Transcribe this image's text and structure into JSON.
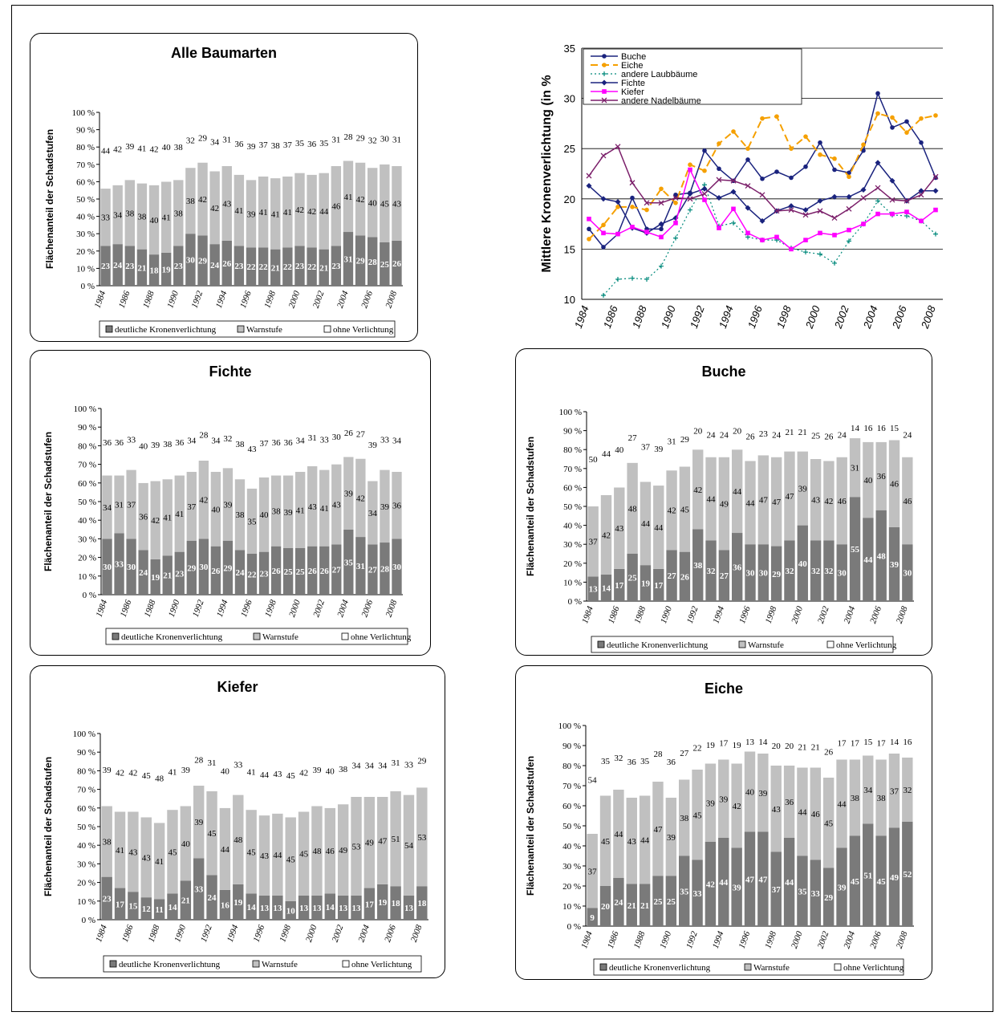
{
  "years": [
    1984,
    1985,
    1986,
    1987,
    1988,
    1989,
    1990,
    1991,
    1992,
    1993,
    1994,
    1995,
    1996,
    1997,
    1998,
    1999,
    2000,
    2001,
    2002,
    2003,
    2004,
    2005,
    2006,
    2007,
    2008
  ],
  "x_tick_labels": [
    "1984",
    "1986",
    "1988",
    "1990",
    "1992",
    "1994",
    "1996",
    "1998",
    "2000",
    "2002",
    "2004",
    "2006",
    "2008"
  ],
  "y_tick_labels": [
    "0 %",
    "10 %",
    "20 %",
    "30 %",
    "40 %",
    "50 %",
    "60 %",
    "70 %",
    "80 %",
    "90 %",
    "100 %"
  ],
  "ylabel": "Flächenanteil der Schadstufen",
  "legend": [
    "deutliche Kronenverlichtung",
    "Warnstufe",
    "ohne Verlichtung"
  ],
  "colors": {
    "deutlich": "#7a7a7a",
    "warn": "#c0c0c0",
    "ohne": "#ffffff",
    "buche": "#1a237e",
    "eiche": "#f5a000",
    "laub": "#00897b",
    "fichte": "#1a237e",
    "kiefer": "#ff00ff",
    "nadel": "#7b1f6a"
  },
  "chart_data": [
    {
      "type": "bar",
      "stacked": true,
      "title": "Alle Baumarten",
      "categories": [
        1984,
        1985,
        1986,
        1987,
        1988,
        1989,
        1990,
        1991,
        1992,
        1993,
        1994,
        1995,
        1996,
        1997,
        1998,
        1999,
        2000,
        2001,
        2002,
        2003,
        2004,
        2005,
        2006,
        2007,
        2008
      ],
      "series": [
        {
          "name": "deutliche Kronenverlichtung",
          "values": [
            23,
            24,
            23,
            21,
            18,
            19,
            23,
            30,
            29,
            24,
            26,
            23,
            22,
            22,
            21,
            22,
            23,
            22,
            21,
            23,
            31,
            29,
            28,
            25,
            26
          ]
        },
        {
          "name": "Warnstufe",
          "values": [
            33,
            34,
            38,
            38,
            40,
            41,
            38,
            38,
            42,
            42,
            43,
            41,
            39,
            41,
            41,
            41,
            42,
            42,
            44,
            46,
            41,
            42,
            40,
            45,
            43
          ]
        },
        {
          "name": "ohne Verlichtung",
          "values": [
            44,
            42,
            39,
            41,
            42,
            40,
            38,
            32,
            29,
            34,
            31,
            36,
            39,
            37,
            38,
            37,
            35,
            36,
            35,
            31,
            28,
            29,
            32,
            30,
            31
          ]
        }
      ],
      "ylim": [
        0,
        100
      ]
    },
    {
      "type": "line",
      "title": "",
      "ylabel": "Mittlere Kronenverlichtung (in %",
      "x": [
        1984,
        1985,
        1986,
        1987,
        1988,
        1989,
        1990,
        1991,
        1992,
        1993,
        1994,
        1995,
        1996,
        1997,
        1998,
        1999,
        2000,
        2001,
        2002,
        2003,
        2004,
        2005,
        2006,
        2007,
        2008
      ],
      "ylim": [
        10,
        35
      ],
      "yticks": [
        "10",
        "15",
        "20",
        "25",
        "30",
        "35"
      ],
      "series": [
        {
          "name": "Buche",
          "values": [
            17,
            15.2,
            16.5,
            20.1,
            17,
            17,
            20.4,
            20.6,
            24.8,
            23,
            21.8,
            23.9,
            22,
            22.7,
            22.1,
            23.2,
            25.6,
            22.9,
            22.6,
            24.8,
            30.5,
            27.1,
            27.7,
            25.6,
            22.1
          ]
        },
        {
          "name": "Eiche",
          "values": [
            16,
            17.4,
            19.2,
            19.2,
            18.9,
            21,
            19.6,
            23.4,
            22.8,
            25.5,
            26.7,
            25,
            28,
            28.2,
            25,
            26.2,
            24.4,
            24,
            22.2,
            25.4,
            28.5,
            28.1,
            26.6,
            28,
            28.3
          ]
        },
        {
          "name": "andere Laubbäume",
          "values": [
            null,
            10.4,
            12,
            12.1,
            12,
            13.3,
            16.1,
            18.9,
            21.4,
            17.3,
            17.6,
            16.2,
            15.9,
            15.9,
            15.1,
            14.7,
            14.5,
            13.6,
            15.8,
            17.5,
            19.8,
            18.4,
            18.3,
            17.8,
            16.5
          ]
        },
        {
          "name": "Fichte",
          "values": [
            21.3,
            20,
            19.7,
            17.1,
            16.6,
            17.5,
            18.1,
            20.5,
            21,
            20.1,
            20.7,
            19.1,
            17.8,
            18.8,
            19.3,
            18.9,
            19.8,
            20.2,
            20.2,
            20.9,
            23.6,
            21.8,
            19.8,
            20.8,
            20.8
          ]
        },
        {
          "name": "Kiefer",
          "values": [
            18,
            16.6,
            16.5,
            17.2,
            16.7,
            16.2,
            17.6,
            22.9,
            19.9,
            17.1,
            19,
            16.6,
            15.9,
            16.2,
            15,
            15.9,
            16.6,
            16.4,
            16.9,
            17.5,
            18.5,
            18.5,
            18.7,
            17.8,
            18.9
          ]
        },
        {
          "name": "andere Nadelbäume",
          "values": [
            22.3,
            24.3,
            25.2,
            21.6,
            19.6,
            19.6,
            20.1,
            20,
            20.5,
            21.9,
            21.8,
            21.3,
            20.4,
            18.8,
            18.9,
            18.4,
            18.8,
            18.1,
            19,
            20.1,
            21.1,
            19.9,
            19.8,
            20.4,
            22.2
          ]
        }
      ]
    },
    {
      "type": "bar",
      "stacked": true,
      "title": "Fichte",
      "categories": [
        1984,
        1985,
        1986,
        1987,
        1988,
        1989,
        1990,
        1991,
        1992,
        1993,
        1994,
        1995,
        1996,
        1997,
        1998,
        1999,
        2000,
        2001,
        2002,
        2003,
        2004,
        2005,
        2006,
        2007,
        2008
      ],
      "series": [
        {
          "name": "deutliche Kronenverlichtung",
          "values": [
            30,
            33,
            30,
            24,
            19,
            21,
            23,
            29,
            30,
            26,
            29,
            24,
            22,
            23,
            26,
            25,
            25,
            26,
            26,
            27,
            35,
            31,
            27,
            28,
            30
          ]
        },
        {
          "name": "Warnstufe",
          "values": [
            34,
            31,
            37,
            36,
            42,
            41,
            41,
            37,
            42,
            40,
            39,
            38,
            35,
            40,
            38,
            39,
            41,
            43,
            41,
            43,
            39,
            42,
            34,
            39,
            36
          ]
        },
        {
          "name": "ohne Verlichtung",
          "values": [
            36,
            36,
            33,
            40,
            39,
            38,
            36,
            34,
            28,
            34,
            32,
            38,
            43,
            37,
            36,
            36,
            34,
            31,
            33,
            30,
            26,
            27,
            39,
            33,
            34
          ]
        }
      ],
      "ylim": [
        0,
        100
      ]
    },
    {
      "type": "bar",
      "stacked": true,
      "title": "Buche",
      "categories": [
        1984,
        1985,
        1986,
        1987,
        1988,
        1989,
        1990,
        1991,
        1992,
        1993,
        1994,
        1995,
        1996,
        1997,
        1998,
        1999,
        2000,
        2001,
        2002,
        2003,
        2004,
        2005,
        2006,
        2007,
        2008
      ],
      "series": [
        {
          "name": "deutliche Kronenverlichtung",
          "values": [
            13,
            14,
            17,
            25,
            19,
            17,
            27,
            26,
            38,
            32,
            27,
            36,
            30,
            30,
            29,
            32,
            40,
            32,
            32,
            30,
            55,
            44,
            48,
            39,
            30
          ]
        },
        {
          "name": "Warnstufe",
          "values": [
            37,
            42,
            43,
            48,
            44,
            44,
            42,
            45,
            42,
            44,
            49,
            44,
            44,
            47,
            47,
            47,
            39,
            43,
            42,
            46,
            31,
            40,
            36,
            46,
            46
          ]
        },
        {
          "name": "ohne Verlichtung",
          "values": [
            50,
            44,
            40,
            27,
            37,
            39,
            31,
            29,
            20,
            24,
            24,
            20,
            26,
            23,
            24,
            21,
            21,
            25,
            26,
            24,
            14,
            16,
            16,
            15,
            24
          ]
        }
      ],
      "ylim": [
        0,
        100
      ]
    },
    {
      "type": "bar",
      "stacked": true,
      "title": "Kiefer",
      "categories": [
        1984,
        1985,
        1986,
        1987,
        1988,
        1989,
        1990,
        1991,
        1992,
        1993,
        1994,
        1995,
        1996,
        1997,
        1998,
        1999,
        2000,
        2001,
        2002,
        2003,
        2004,
        2005,
        2006,
        2007,
        2008
      ],
      "series": [
        {
          "name": "deutliche Kronenverlichtung",
          "values": [
            23,
            17,
            15,
            12,
            11,
            14,
            21,
            33,
            24,
            16,
            19,
            14,
            13,
            13,
            10,
            13,
            13,
            14,
            13,
            13,
            17,
            19,
            18,
            13,
            18
          ]
        },
        {
          "name": "Warnstufe",
          "values": [
            38,
            41,
            43,
            43,
            41,
            45,
            40,
            39,
            45,
            44,
            48,
            45,
            43,
            44,
            45,
            45,
            48,
            46,
            49,
            53,
            49,
            47,
            51,
            54,
            53
          ]
        },
        {
          "name": "ohne Verlichtung",
          "values": [
            39,
            42,
            42,
            45,
            48,
            41,
            39,
            28,
            31,
            40,
            33,
            41,
            44,
            43,
            45,
            42,
            39,
            40,
            38,
            34,
            34,
            34,
            31,
            33,
            29
          ]
        }
      ],
      "ylim": [
        0,
        100
      ]
    },
    {
      "type": "bar",
      "stacked": true,
      "title": "Eiche",
      "categories": [
        1984,
        1985,
        1986,
        1987,
        1988,
        1989,
        1990,
        1991,
        1992,
        1993,
        1994,
        1995,
        1996,
        1997,
        1998,
        1999,
        2000,
        2001,
        2002,
        2003,
        2004,
        2005,
        2006,
        2007,
        2008
      ],
      "series": [
        {
          "name": "deutliche Kronenverlichtung",
          "values": [
            9,
            20,
            24,
            21,
            21,
            25,
            25,
            35,
            33,
            42,
            44,
            39,
            47,
            47,
            37,
            44,
            35,
            33,
            29,
            39,
            45,
            51,
            45,
            49,
            52
          ]
        },
        {
          "name": "Warnstufe",
          "values": [
            37,
            45,
            44,
            43,
            44,
            47,
            39,
            38,
            45,
            39,
            39,
            42,
            40,
            39,
            43,
            36,
            44,
            46,
            45,
            44,
            38,
            34,
            38,
            37,
            32
          ]
        },
        {
          "name": "ohne Verlichtung",
          "values": [
            54,
            35,
            32,
            36,
            35,
            28,
            36,
            27,
            22,
            19,
            17,
            19,
            13,
            14,
            20,
            20,
            21,
            21,
            26,
            17,
            17,
            15,
            17,
            14,
            16
          ]
        }
      ],
      "ylim": [
        0,
        100
      ]
    }
  ]
}
